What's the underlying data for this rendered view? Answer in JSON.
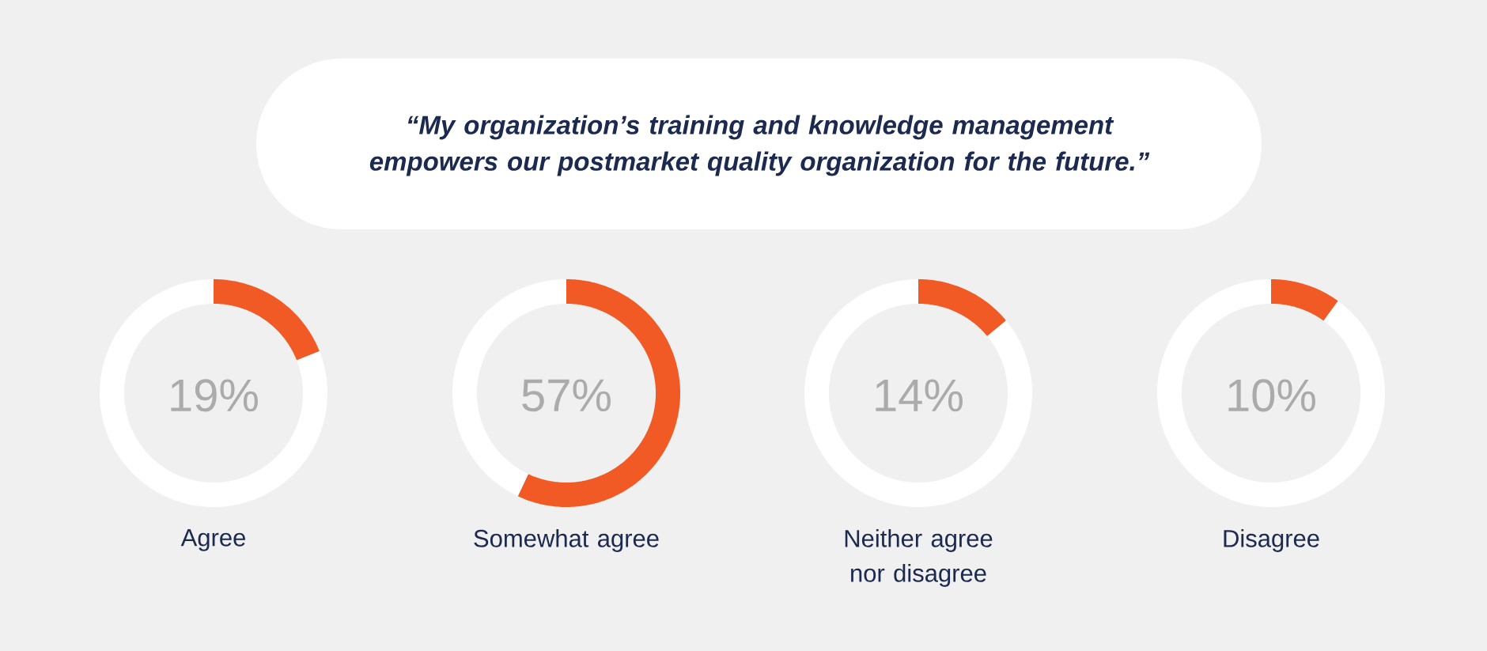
{
  "chart_data": [
    {
      "type": "other",
      "title": "“My organization’s training and knowledge management empowers our postmarket quality organization for the future.”"
    },
    {
      "type": "donut",
      "title": "Agree",
      "categories": [
        null,
        null
      ],
      "values": [
        19,
        81
      ],
      "colors": [
        "#f15a24",
        "#ffffff"
      ],
      "annotations": [
        "19%"
      ]
    },
    {
      "type": "donut",
      "title": "Somewhat agree",
      "categories": [
        null,
        null
      ],
      "values": [
        57,
        43
      ],
      "colors": [
        "#f15a24",
        "#ffffff"
      ],
      "annotations": [
        "57%"
      ]
    },
    {
      "type": "donut",
      "title": "Neither agree nor disagree",
      "categories": [
        null,
        null
      ],
      "values": [
        14,
        86
      ],
      "colors": [
        "#f15a24",
        "#ffffff"
      ],
      "annotations": [
        "14%"
      ]
    },
    {
      "type": "donut",
      "title": "Disagree",
      "categories": [
        null,
        null
      ],
      "values": [
        10,
        90
      ],
      "colors": [
        "#f15a24",
        "#ffffff"
      ],
      "annotations": [
        "10%"
      ]
    }
  ]
}
